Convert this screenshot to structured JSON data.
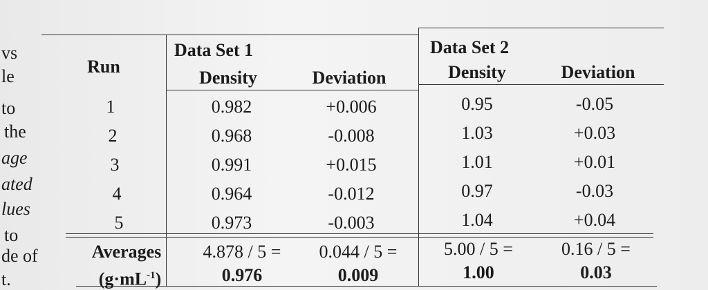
{
  "margin_fragments": [
    "vs",
    "le",
    "to",
    "the",
    "age",
    "ated",
    "lues",
    "to",
    "de of",
    "t."
  ],
  "table": {
    "run_header": "Run",
    "groups": [
      {
        "title": "Data Set 1",
        "columns": [
          "Density",
          "Deviation"
        ]
      },
      {
        "title": "Data Set 2",
        "columns": [
          "Density",
          "Deviation"
        ]
      }
    ],
    "rows": [
      [
        "1",
        "0.982",
        "+0.006",
        "0.95",
        "-0.05"
      ],
      [
        "2",
        "0.968",
        "-0.008",
        "1.03",
        "+0.03"
      ],
      [
        "3",
        "0.991",
        "+0.015",
        "1.01",
        "+0.01"
      ],
      [
        "4",
        "0.964",
        "-0.012",
        "0.97",
        "-0.03"
      ],
      [
        "5",
        "0.973",
        "-0.003",
        "1.04",
        "+0.04"
      ]
    ],
    "averages": {
      "label": "Averages",
      "unit": "(g·mL",
      "unit_exponent": "-1",
      "unit_close": ")",
      "cells": [
        {
          "expression": "4.878 / 5 =",
          "result": "0.976"
        },
        {
          "expression": "0.044 / 5 =",
          "result": "0.009"
        },
        {
          "expression": "5.00 / 5 =",
          "result": "1.00"
        },
        {
          "expression": "0.16 / 5 =",
          "result": "0.03"
        }
      ]
    }
  }
}
